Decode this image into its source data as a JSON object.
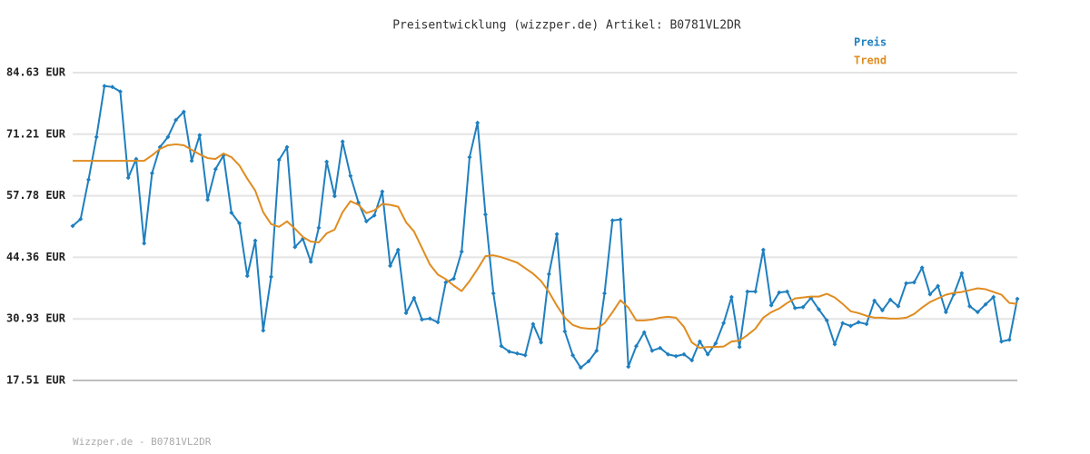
{
  "chart_data": {
    "type": "line",
    "title": "Preisentwicklung (wizzper.de) Artikel: B0781VL2DR",
    "footer": "Wizzper.de - B0781VL2DR",
    "ylim": [
      17.51,
      84.63
    ],
    "yticks": [
      {
        "value": 17.51,
        "label": "17.51 EUR"
      },
      {
        "value": 30.93,
        "label": "30.93 EUR"
      },
      {
        "value": 44.36,
        "label": "44.36 EUR"
      },
      {
        "value": 57.78,
        "label": "57.78 EUR"
      },
      {
        "value": 71.21,
        "label": "71.21 EUR"
      },
      {
        "value": 84.63,
        "label": "84.63 EUR"
      }
    ],
    "grid": true,
    "legend": "top-right",
    "series": [
      {
        "name": "Preis",
        "color": "#1f7fbf",
        "markers": true,
        "values": [
          51.2,
          52.7,
          61.3,
          70.6,
          81.7,
          81.5,
          80.5,
          61.7,
          65.8,
          47.4,
          62.7,
          68.4,
          70.6,
          74.3,
          76.1,
          65.4,
          71.0,
          56.9,
          63.6,
          66.6,
          54.1,
          51.8,
          40.3,
          48.0,
          28.4,
          40.1,
          65.6,
          68.4,
          46.6,
          48.4,
          43.4,
          50.8,
          65.2,
          57.7,
          69.6,
          62.1,
          56.3,
          52.2,
          53.5,
          58.7,
          42.5,
          46.0,
          32.2,
          35.5,
          30.8,
          31.0,
          30.2,
          38.9,
          39.7,
          45.6,
          66.2,
          73.7,
          53.7,
          36.5,
          25.0,
          23.8,
          23.4,
          23.0,
          29.8,
          25.8,
          40.7,
          49.4,
          28.2,
          23.0,
          20.3,
          21.7,
          24.0,
          36.5,
          52.4,
          52.6,
          20.5,
          25.0,
          28.0,
          24.0,
          24.6,
          23.2,
          22.8,
          23.2,
          21.9,
          26.0,
          23.2,
          25.6,
          30.0,
          35.7,
          24.8,
          36.9,
          36.9,
          46.0,
          33.9,
          36.7,
          36.9,
          33.3,
          33.5,
          35.5,
          33.0,
          30.6,
          25.4,
          30.0,
          29.4,
          30.2,
          29.8,
          34.9,
          32.8,
          35.1,
          33.7,
          38.7,
          38.9,
          42.1,
          36.3,
          38.1,
          32.4,
          36.3,
          40.9,
          33.7,
          32.4,
          34.1,
          35.7,
          26.0,
          26.4,
          35.3
        ]
      },
      {
        "name": "Trend",
        "color": "#e08c20",
        "markers": false,
        "values": [
          65.4,
          65.4,
          65.4,
          65.4,
          65.4,
          65.4,
          65.4,
          65.4,
          65.4,
          65.4,
          66.6,
          68.0,
          68.8,
          69.0,
          68.8,
          67.8,
          66.8,
          66.0,
          65.8,
          67.0,
          66.2,
          64.4,
          61.5,
          58.9,
          54.2,
          51.6,
          51.0,
          52.2,
          50.6,
          48.8,
          47.8,
          47.6,
          49.6,
          50.4,
          54.2,
          56.6,
          55.8,
          54.0,
          54.6,
          56.0,
          55.8,
          55.4,
          52.0,
          50.0,
          46.4,
          42.8,
          40.6,
          39.6,
          38.2,
          37.0,
          39.2,
          41.8,
          44.6,
          44.8,
          44.4,
          43.8,
          43.2,
          42.0,
          40.8,
          39.2,
          36.8,
          33.8,
          31.2,
          29.6,
          29.0,
          28.8,
          28.8,
          30.0,
          32.4,
          35.0,
          33.4,
          30.6,
          30.6,
          30.8,
          31.2,
          31.4,
          31.2,
          29.2,
          25.8,
          24.6,
          24.8,
          24.8,
          24.9,
          26.0,
          26.2,
          27.4,
          28.8,
          31.2,
          32.4,
          33.2,
          34.4,
          35.4,
          35.6,
          35.8,
          35.8,
          36.4,
          35.6,
          34.2,
          32.6,
          32.2,
          31.6,
          31.2,
          31.2,
          31.0,
          31.0,
          31.2,
          32.0,
          33.4,
          34.6,
          35.4,
          36.2,
          36.6,
          36.8,
          37.2,
          37.6,
          37.4,
          36.8,
          36.2,
          34.4,
          34.2
        ]
      }
    ]
  }
}
